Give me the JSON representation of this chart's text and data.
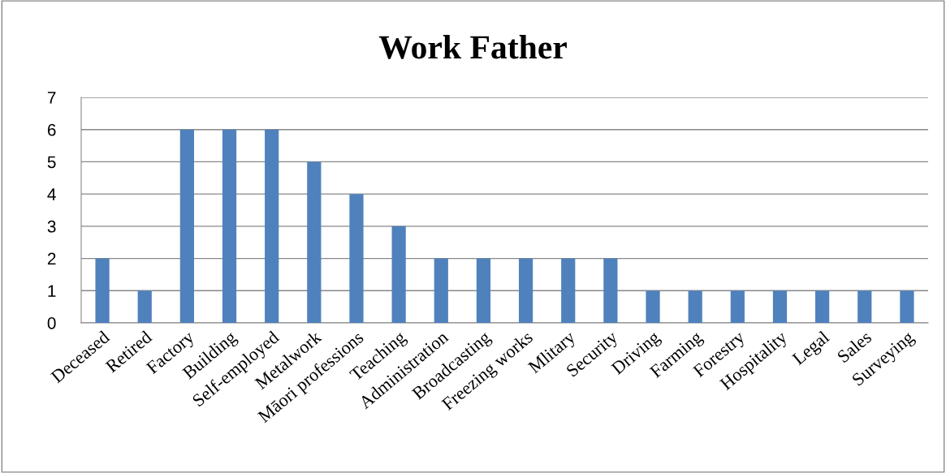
{
  "chart_data": {
    "type": "bar",
    "title": "Work Father",
    "categories": [
      "Deceased",
      "Retired",
      "Factory",
      "Building",
      "Self-employed",
      "Metalwork",
      "Māori professions",
      "Teaching",
      "Administration",
      "Broadcasting",
      "Freezing works",
      "Mlitary",
      "Security",
      "Driving",
      "Farming",
      "Forestry",
      "Hospitality",
      "Legal",
      "Sales",
      "Surveying"
    ],
    "values": [
      2,
      1,
      6,
      6,
      6,
      5,
      4,
      3,
      2,
      2,
      2,
      2,
      2,
      1,
      1,
      1,
      1,
      1,
      1,
      1
    ],
    "color": "#4f81bd",
    "ylim": [
      0,
      7
    ],
    "yticks": [
      0,
      1,
      2,
      3,
      4,
      5,
      6,
      7
    ],
    "grid": "y",
    "legend": false
  }
}
